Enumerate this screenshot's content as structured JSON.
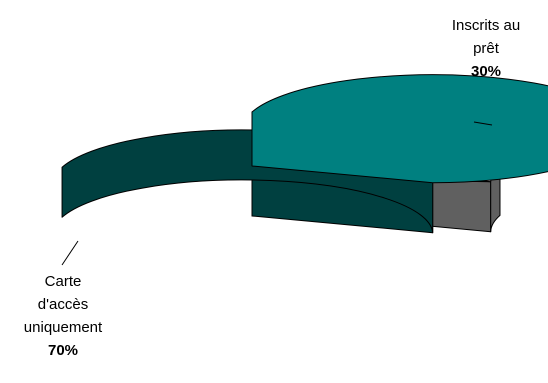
{
  "chart_data": {
    "type": "pie",
    "style": "3d-exploded",
    "slices": [
      {
        "label": "Inscrits au prêt",
        "value": 30,
        "display": "30%",
        "color": "#c0c0c0",
        "side_color": "#606060"
      },
      {
        "label": "Carte d'accès uniquement",
        "value": 70,
        "display": "70%",
        "color": "#008080",
        "side_color": "#004040"
      }
    ],
    "labels": {
      "inscrits": {
        "lines": [
          "Inscrits au",
          "prêt"
        ],
        "pct": "30%"
      },
      "carte": {
        "lines": [
          "Carte",
          "d'accès",
          "uniquement"
        ],
        "pct": "70%"
      }
    }
  }
}
